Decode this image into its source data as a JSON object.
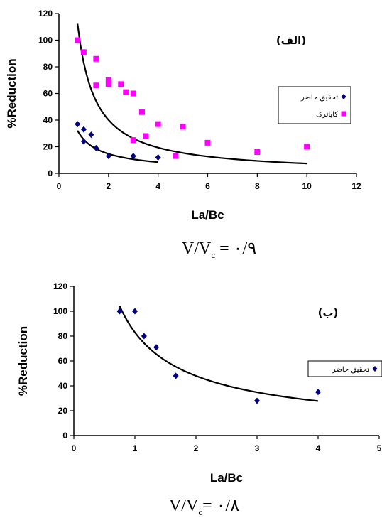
{
  "chart_data": [
    {
      "type": "scatter",
      "panel_label": "(الف)",
      "xlabel": "La/Bc",
      "ylabel": "%Reduction",
      "xlim": [
        0,
        12
      ],
      "ylim": [
        0,
        120
      ],
      "xticks": [
        0,
        2,
        4,
        6,
        8,
        10,
        12
      ],
      "yticks": [
        0,
        20,
        40,
        60,
        80,
        100,
        120
      ],
      "grid": false,
      "legend_position": "right",
      "caption": {
        "main": "V/V",
        "sub": "c",
        "rest": " = ۰/۹"
      },
      "series": [
        {
          "name": "تحقیق حاضر",
          "marker": "diamond",
          "color": "#000080",
          "points": [
            [
              0.75,
              37
            ],
            [
              1.0,
              33
            ],
            [
              1.0,
              24
            ],
            [
              1.3,
              29
            ],
            [
              1.5,
              19
            ],
            [
              2.0,
              13
            ],
            [
              3.0,
              13
            ],
            [
              4.0,
              12
            ]
          ],
          "trend": {
            "type": "power",
            "a": 25.5,
            "b": -0.8,
            "x_range": [
              0.75,
              4.0
            ]
          }
        },
        {
          "name": "کایاترک",
          "marker": "square",
          "color": "#ff00ff",
          "points": [
            [
              0.75,
              100
            ],
            [
              1.0,
              91
            ],
            [
              1.5,
              86
            ],
            [
              1.5,
              66
            ],
            [
              2.0,
              70
            ],
            [
              2.0,
              67
            ],
            [
              2.5,
              67
            ],
            [
              2.7,
              61
            ],
            [
              3.0,
              60
            ],
            [
              3.0,
              25
            ],
            [
              3.35,
              46
            ],
            [
              3.5,
              28
            ],
            [
              4.0,
              37
            ],
            [
              4.7,
              13
            ],
            [
              5.0,
              35
            ],
            [
              6.0,
              23
            ],
            [
              8.0,
              16
            ],
            [
              10.0,
              20
            ]
          ],
          "trend": {
            "type": "power",
            "a": 83,
            "b": -1.05,
            "x_range": [
              0.75,
              10.0
            ]
          }
        }
      ]
    },
    {
      "type": "scatter",
      "panel_label": "(ب)",
      "xlabel": "La/Bc",
      "ylabel": "%Reduction",
      "xlim": [
        0,
        5
      ],
      "ylim": [
        0,
        120
      ],
      "xticks": [
        0,
        1,
        2,
        3,
        4,
        5
      ],
      "yticks": [
        0,
        20,
        40,
        60,
        80,
        100,
        120
      ],
      "grid": false,
      "legend_position": "right",
      "caption": {
        "main": "V/V",
        "sub": "c",
        "rest": "= ۰/۸"
      },
      "series": [
        {
          "name": "تحقیق حاضر",
          "marker": "diamond",
          "color": "#000080",
          "points": [
            [
              0.75,
              100
            ],
            [
              1.0,
              100
            ],
            [
              1.15,
              80
            ],
            [
              1.35,
              71
            ],
            [
              1.67,
              48
            ],
            [
              3.0,
              28
            ],
            [
              4.0,
              35
            ]
          ],
          "trend": {
            "type": "power",
            "a": 83,
            "b": -0.79,
            "x_range": [
              0.75,
              4.0
            ]
          }
        }
      ]
    }
  ]
}
